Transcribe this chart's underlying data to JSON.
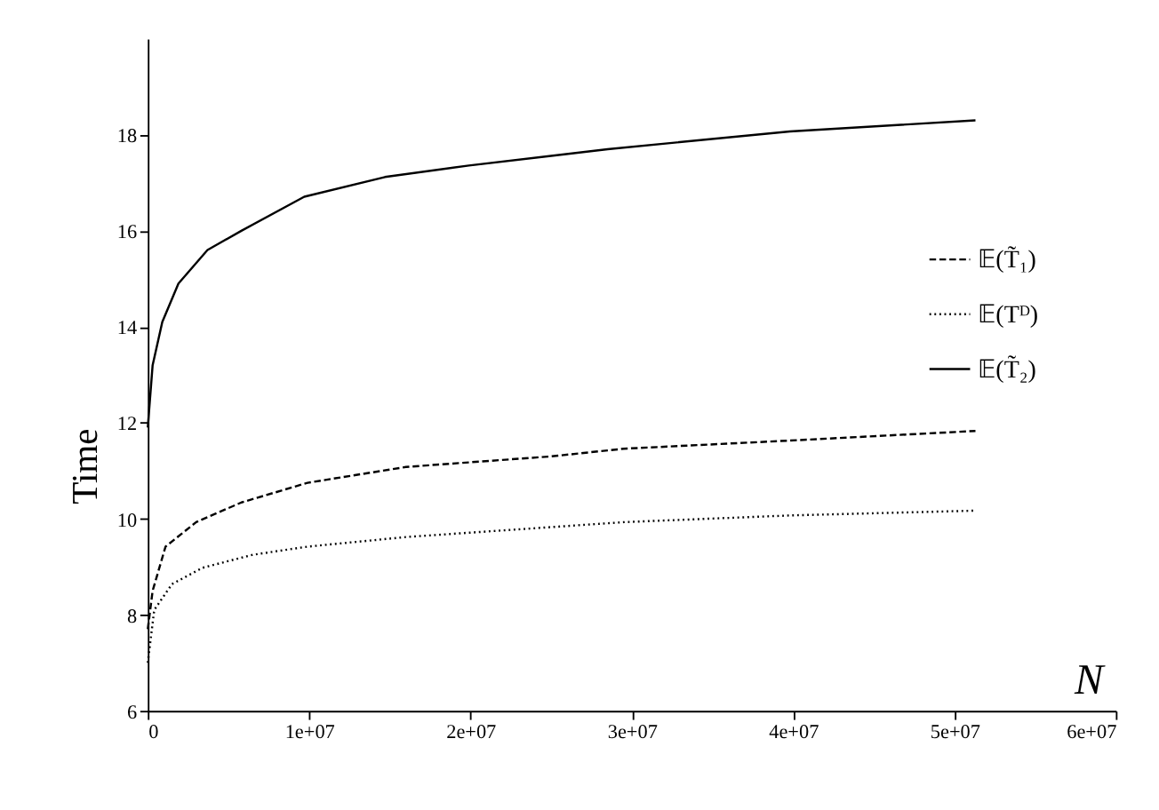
{
  "chart_data": {
    "type": "line",
    "xlabel": "N",
    "ylabel": "Time",
    "xlim": [
      0,
      60000000
    ],
    "ylim": [
      6,
      20
    ],
    "xticks": [
      0,
      {
        "value": 10000000,
        "label": "1e+07"
      },
      {
        "value": 20000000,
        "label": "2e+07"
      },
      {
        "value": 30000000,
        "label": "3e+07"
      },
      {
        "value": 40000000,
        "label": "4e+07"
      },
      {
        "value": 50000000,
        "label": "5e+07"
      },
      {
        "value": 60000000,
        "label": "6e+07"
      }
    ],
    "yticks": [
      6,
      8,
      10,
      12,
      14,
      16,
      18
    ],
    "grid": false,
    "legend": "top right",
    "series": [
      {
        "name": "𝔼(T̃₁)",
        "color": "#000000",
        "line_style": "dashed",
        "x": [
          0,
          300000,
          1100000,
          3000000,
          5800000,
          9900000,
          16000000,
          25000000,
          29500000,
          39800000,
          51300000
        ],
        "values": [
          7.7,
          8.5,
          9.42,
          9.93,
          10.34,
          10.75,
          11.08,
          11.3,
          11.46,
          11.63,
          11.83
        ]
      },
      {
        "name": "𝔼(Tᴰ)",
        "color": "#000000",
        "line_style": "dotted",
        "x": [
          0,
          400000,
          1500000,
          3400000,
          6500000,
          9900000,
          16000000,
          29500000,
          39800000,
          51300000
        ],
        "values": [
          7.0,
          8.1,
          8.64,
          8.98,
          9.25,
          9.42,
          9.62,
          9.93,
          10.07,
          10.17
        ]
      },
      {
        "name": "𝔼(T̃₂)",
        "color": "#000000",
        "line_style": "solid",
        "x": [
          0,
          300000,
          900000,
          1900000,
          3700000,
          5800000,
          9700000,
          14700000,
          19900000,
          25000000,
          28500000,
          39800000,
          51300000
        ],
        "values": [
          11.9,
          13.2,
          14.1,
          14.9,
          15.6,
          16.0,
          16.71,
          17.12,
          17.36,
          17.56,
          17.7,
          18.07,
          18.3
        ]
      }
    ]
  }
}
